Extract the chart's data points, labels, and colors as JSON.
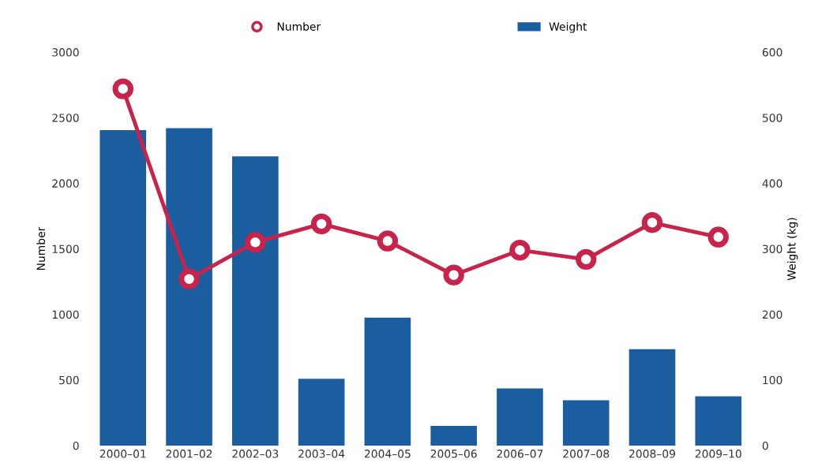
{
  "chart_data": {
    "type": "bar",
    "ylabel": "Number",
    "y2label": "Weight (kg)",
    "categories": [
      "2000–01",
      "2001–02",
      "2002–03",
      "2003–04",
      "2004–05",
      "2005–06",
      "2006–07",
      "2007–08",
      "2008–09",
      "2009–10"
    ],
    "series": [
      {
        "name": "Number",
        "type": "line",
        "axis": "y",
        "color": "#c8234a",
        "marker": "circle",
        "values": [
          2720,
          1270,
          1550,
          1690,
          1560,
          1300,
          1490,
          1420,
          1700,
          1590
        ]
      },
      {
        "name": "Weight",
        "axis": "y2",
        "color": "#1b5e9f",
        "values": [
          481,
          484,
          441,
          102,
          195,
          30,
          87,
          69,
          147,
          75
        ]
      }
    ],
    "ylim": [
      0,
      3000
    ],
    "yticks": [
      0,
      500,
      1000,
      1500,
      2000,
      2500,
      3000
    ],
    "y2lim": [
      0,
      600
    ],
    "y2ticks": [
      0,
      100,
      200,
      300,
      400,
      500,
      600
    ],
    "grid": false,
    "legend": "top"
  }
}
